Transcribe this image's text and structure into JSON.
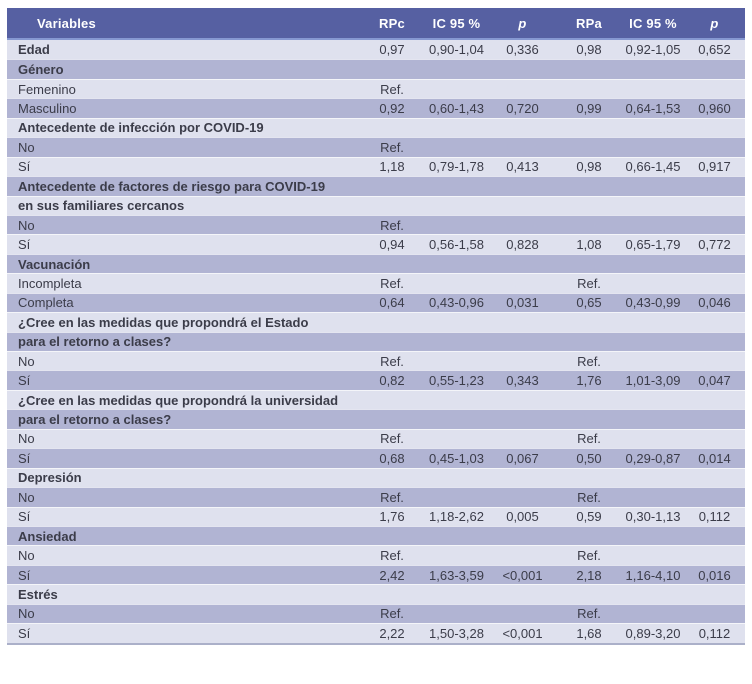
{
  "colors": {
    "header_bg": "#5660a2",
    "header_text": "#ffffff",
    "row_light": "#dfe1ee",
    "row_dark": "#b1b4d3",
    "header_divider": "#8698d1",
    "bottom_border": "#abb0c9",
    "text_color": "#3b3c49"
  },
  "table": {
    "columns": [
      {
        "key": "variables",
        "label": "Variables",
        "italic": false
      },
      {
        "key": "rpc",
        "label": "RPc",
        "italic": false
      },
      {
        "key": "ic95-crude",
        "label": "IC 95 %",
        "italic": false
      },
      {
        "key": "p-crude",
        "label": "p",
        "italic": true
      },
      {
        "key": "rpa",
        "label": "RPa",
        "italic": false
      },
      {
        "key": "ic95-adjusted",
        "label": "IC 95 %",
        "italic": false
      },
      {
        "key": "p-adjusted",
        "label": "p",
        "italic": true
      }
    ],
    "rows": [
      {
        "label": "Edad",
        "bold": true,
        "cells": [
          "0,97",
          "0,90-1,04",
          "0,336",
          "0,98",
          "0,92-1,05",
          "0,652"
        ]
      },
      {
        "label": "Género",
        "bold": true,
        "cells": [
          "",
          "",
          "",
          "",
          "",
          ""
        ]
      },
      {
        "label": "Femenino",
        "bold": false,
        "cells": [
          "Ref.",
          "",
          "",
          "",
          "",
          ""
        ]
      },
      {
        "label": "Masculino",
        "bold": false,
        "cells": [
          "0,92",
          "0,60-1,43",
          "0,720",
          "0,99",
          "0,64-1,53",
          "0,960"
        ]
      },
      {
        "label": "Antecedente de infección por COVID-19",
        "bold": true,
        "cells": [
          "",
          "",
          "",
          "",
          "",
          ""
        ]
      },
      {
        "label": "No",
        "bold": false,
        "cells": [
          "Ref.",
          "",
          "",
          "",
          "",
          ""
        ]
      },
      {
        "label": "Sí",
        "bold": false,
        "cells": [
          "1,18",
          "0,79-1,78",
          "0,413",
          "0,98",
          "0,66-1,45",
          "0,917"
        ]
      },
      {
        "label": "Antecedente de factores de riesgo para COVID-19",
        "bold": true,
        "cells": [
          "",
          "",
          "",
          "",
          "",
          ""
        ]
      },
      {
        "label": "en sus familiares cercanos",
        "bold": true,
        "cells": [
          "",
          "",
          "",
          "",
          "",
          ""
        ]
      },
      {
        "label": "No",
        "bold": false,
        "cells": [
          "Ref.",
          "",
          "",
          "",
          "",
          ""
        ]
      },
      {
        "label": "Sí",
        "bold": false,
        "cells": [
          "0,94",
          "0,56-1,58",
          "0,828",
          "1,08",
          "0,65-1,79",
          "0,772"
        ]
      },
      {
        "label": "Vacunación",
        "bold": true,
        "cells": [
          "",
          "",
          "",
          "",
          "",
          ""
        ]
      },
      {
        "label": "Incompleta",
        "bold": false,
        "cells": [
          "Ref.",
          "",
          "",
          "Ref.",
          "",
          ""
        ]
      },
      {
        "label": "Completa",
        "bold": false,
        "cells": [
          "0,64",
          "0,43-0,96",
          "0,031",
          "0,65",
          "0,43-0,99",
          "0,046"
        ]
      },
      {
        "label": "¿Cree en las medidas que propondrá el Estado",
        "bold": true,
        "cells": [
          "",
          "",
          "",
          "",
          "",
          ""
        ]
      },
      {
        "label": "para el retorno a clases?",
        "bold": true,
        "cells": [
          "",
          "",
          "",
          "",
          "",
          ""
        ]
      },
      {
        "label": "No",
        "bold": false,
        "cells": [
          "Ref.",
          "",
          "",
          "Ref.",
          "",
          ""
        ]
      },
      {
        "label": "Sí",
        "bold": false,
        "cells": [
          "0,82",
          "0,55-1,23",
          "0,343",
          "1,76",
          "1,01-3,09",
          "0,047"
        ]
      },
      {
        "label": "¿Cree en las medidas que propondrá la universidad",
        "bold": true,
        "cells": [
          "",
          "",
          "",
          "",
          "",
          ""
        ]
      },
      {
        "label": "para el retorno a clases?",
        "bold": true,
        "cells": [
          "",
          "",
          "",
          "",
          "",
          ""
        ]
      },
      {
        "label": "No",
        "bold": false,
        "cells": [
          "Ref.",
          "",
          "",
          "Ref.",
          "",
          ""
        ]
      },
      {
        "label": "Sí",
        "bold": false,
        "cells": [
          "0,68",
          "0,45-1,03",
          "0,067",
          "0,50",
          "0,29-0,87",
          "0,014"
        ]
      },
      {
        "label": "Depresión",
        "bold": true,
        "cells": [
          "",
          "",
          "",
          "",
          "",
          ""
        ]
      },
      {
        "label": "No",
        "bold": false,
        "cells": [
          "Ref.",
          "",
          "",
          "Ref.",
          "",
          ""
        ]
      },
      {
        "label": "Sí",
        "bold": false,
        "cells": [
          "1,76",
          "1,18-2,62",
          "0,005",
          "0,59",
          "0,30-1,13",
          "0,112"
        ]
      },
      {
        "label": "Ansiedad",
        "bold": true,
        "cells": [
          "",
          "",
          "",
          "",
          "",
          ""
        ]
      },
      {
        "label": "No",
        "bold": false,
        "cells": [
          "Ref.",
          "",
          "",
          "Ref.",
          "",
          ""
        ]
      },
      {
        "label": "Sí",
        "bold": false,
        "cells": [
          "2,42",
          "1,63-3,59",
          "<0,001",
          "2,18",
          "1,16-4,10",
          "0,016"
        ]
      },
      {
        "label": "Estrés",
        "bold": true,
        "cells": [
          "",
          "",
          "",
          "",
          "",
          ""
        ]
      },
      {
        "label": "No",
        "bold": false,
        "cells": [
          "Ref.",
          "",
          "",
          "Ref.",
          "",
          ""
        ]
      },
      {
        "label": "Sí",
        "bold": false,
        "cells": [
          "2,22",
          "1,50-3,28",
          "<0,001",
          "1,68",
          "0,89-3,20",
          "0,112"
        ]
      }
    ]
  }
}
